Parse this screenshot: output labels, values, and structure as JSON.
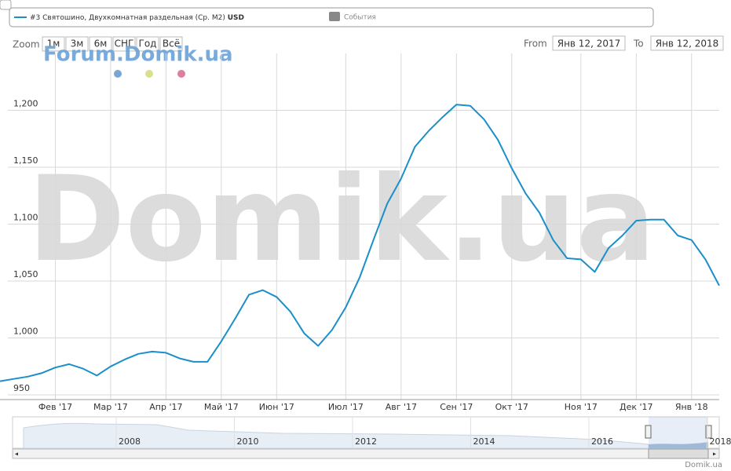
{
  "chart_data": {
    "type": "line",
    "legend": {
      "series_label": "#3 Святошино, Двухкомнатная раздельная (Ср. М2)",
      "currency": "USD",
      "events": "События"
    },
    "range_selector": {
      "label": "Zoom",
      "buttons": [
        "1м",
        "3м",
        "6м",
        "СНГ",
        "Год",
        "Всё"
      ],
      "from_label": "From",
      "from": "Янв 12, 2017",
      "to_label": "To",
      "to": "Янв 12, 2018"
    },
    "watermarks": [
      "Forum.Domik.ua",
      "Domik.ua"
    ],
    "credit": "Domik.ua",
    "navigator": {
      "labels": [
        "2008",
        "2010",
        "2012",
        "2014",
        "2016",
        "2018"
      ]
    },
    "categories": [
      null,
      null,
      null,
      null,
      "Фев '17",
      null,
      null,
      null,
      "Мар '17",
      null,
      null,
      null,
      "Апр '17",
      null,
      null,
      null,
      "Май '17",
      null,
      null,
      null,
      "Июн '17",
      null,
      null,
      null,
      null,
      "Июл '17",
      null,
      null,
      null,
      "Авг '17",
      null,
      null,
      null,
      "Сен '17",
      null,
      null,
      null,
      "Окт '17",
      null,
      null,
      null,
      null,
      "Ноя '17",
      null,
      null,
      null,
      "Дек '17",
      null,
      null,
      null,
      "Янв '18",
      null,
      null
    ],
    "series": [
      {
        "name": "#3 Святошино, Двухкомнатная раздельная (Ср. М2)",
        "color": "#1a8fc9",
        "values": [
          962,
          964,
          966,
          969,
          974,
          977,
          973,
          967,
          975,
          981,
          986,
          988,
          987,
          982,
          979,
          979,
          997,
          1017,
          1038,
          1042,
          1036,
          1023,
          1004,
          993,
          1007,
          1027,
          1053,
          1086,
          1118,
          1140,
          1168,
          1182,
          1194,
          1205,
          1204,
          1192,
          1174,
          1149,
          1127,
          1110,
          1086,
          1070,
          1069,
          1058,
          1079,
          1090,
          1103,
          1104,
          1104,
          1090,
          1086,
          1069,
          1046
        ]
      }
    ],
    "ylim": [
      950,
      1250
    ],
    "yticks": [
      950,
      {
        "value": 1000,
        "label": "1,000"
      },
      {
        "value": 1050,
        "label": "1,050"
      },
      {
        "value": 1100,
        "label": "1,100"
      },
      {
        "value": 1150,
        "label": "1,150"
      },
      {
        "value": 1200,
        "label": "1,200"
      }
    ],
    "grid": true
  }
}
